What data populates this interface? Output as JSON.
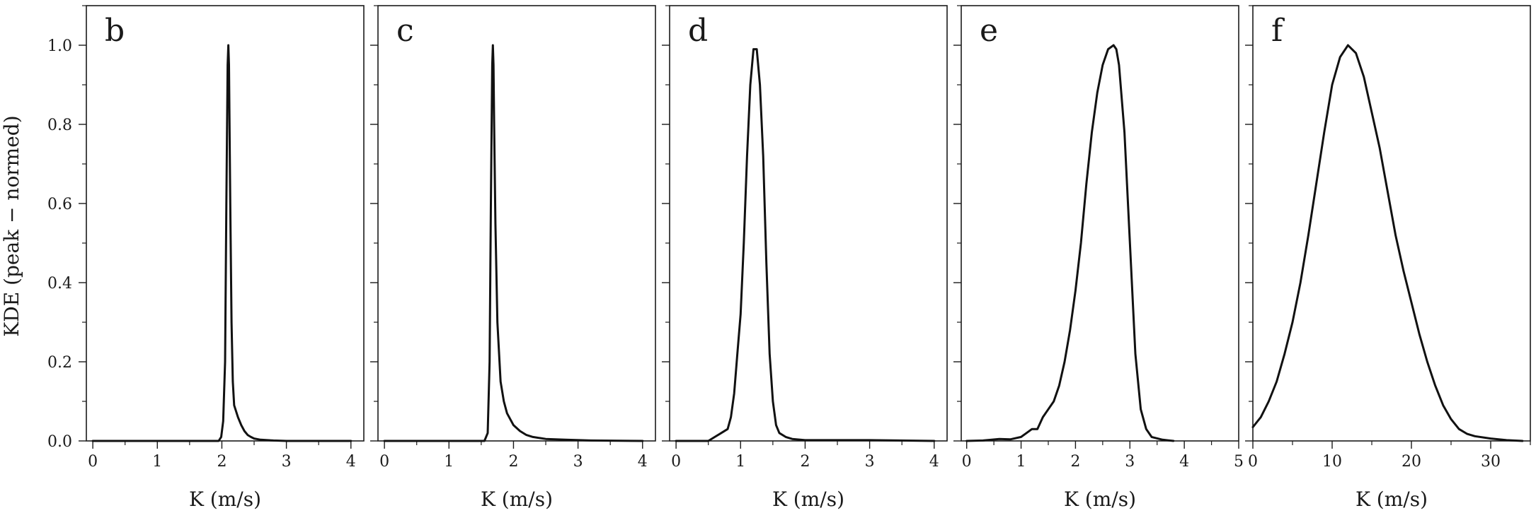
{
  "figure": {
    "ylabel": "KDE (peak − normed)",
    "line_color": "#111111"
  },
  "chart_data": [
    {
      "type": "line",
      "panel": "b",
      "xlabel": "K (m/s)",
      "xlim": [
        -0.1,
        4.2
      ],
      "ylim": [
        0,
        1.1
      ],
      "xticks": [
        0,
        1,
        2,
        3,
        4
      ],
      "yticks": [
        0.0,
        0.2,
        0.4,
        0.6,
        0.8,
        1.0
      ],
      "show_y_tick_labels": true,
      "x": [
        0,
        1.95,
        1.99,
        2.02,
        2.05,
        2.07,
        2.09,
        2.1,
        2.11,
        2.13,
        2.15,
        2.17,
        2.19,
        2.21,
        2.25,
        2.3,
        2.35,
        2.4,
        2.45,
        2.5,
        2.6,
        2.8,
        3.0,
        4.0
      ],
      "y": [
        0,
        0,
        0.01,
        0.05,
        0.2,
        0.6,
        0.95,
        1.0,
        0.95,
        0.6,
        0.3,
        0.15,
        0.09,
        0.08,
        0.06,
        0.04,
        0.025,
        0.015,
        0.01,
        0.006,
        0.003,
        0.001,
        0,
        0
      ]
    },
    {
      "type": "line",
      "panel": "c",
      "xlabel": "K (m/s)",
      "xlim": [
        -0.1,
        4.2
      ],
      "ylim": [
        0,
        1.1
      ],
      "xticks": [
        0,
        1,
        2,
        3,
        4
      ],
      "yticks": [
        0.0,
        0.2,
        0.4,
        0.6,
        0.8,
        1.0
      ],
      "show_y_tick_labels": false,
      "x": [
        0,
        1.55,
        1.6,
        1.63,
        1.65,
        1.67,
        1.68,
        1.69,
        1.7,
        1.72,
        1.75,
        1.8,
        1.85,
        1.9,
        2.0,
        2.1,
        2.2,
        2.3,
        2.5,
        2.8,
        3.2,
        4.0
      ],
      "y": [
        0,
        0,
        0.02,
        0.2,
        0.6,
        0.95,
        1.0,
        0.95,
        0.8,
        0.55,
        0.3,
        0.15,
        0.1,
        0.07,
        0.04,
        0.025,
        0.015,
        0.01,
        0.005,
        0.003,
        0.001,
        0
      ]
    },
    {
      "type": "line",
      "panel": "d",
      "xlabel": "K (m/s)",
      "xlim": [
        -0.1,
        4.2
      ],
      "ylim": [
        0,
        1.1
      ],
      "xticks": [
        0,
        1,
        2,
        3,
        4
      ],
      "yticks": [
        0.0,
        0.2,
        0.4,
        0.6,
        0.8,
        1.0
      ],
      "show_y_tick_labels": false,
      "x": [
        0,
        0.5,
        0.6,
        0.7,
        0.8,
        0.85,
        0.9,
        0.95,
        1.0,
        1.05,
        1.1,
        1.15,
        1.2,
        1.25,
        1.3,
        1.35,
        1.4,
        1.45,
        1.5,
        1.55,
        1.6,
        1.7,
        1.8,
        2.0,
        3.0,
        4.0
      ],
      "y": [
        0,
        0,
        0.01,
        0.02,
        0.03,
        0.06,
        0.12,
        0.22,
        0.32,
        0.5,
        0.72,
        0.9,
        0.99,
        0.99,
        0.9,
        0.72,
        0.45,
        0.22,
        0.1,
        0.04,
        0.02,
        0.01,
        0.005,
        0.002,
        0.002,
        0
      ]
    },
    {
      "type": "line",
      "panel": "e",
      "xlabel": "K (m/s)",
      "xlim": [
        -0.1,
        5.0
      ],
      "ylim": [
        0,
        1.1
      ],
      "xticks": [
        0,
        1,
        2,
        3,
        4,
        5
      ],
      "yticks": [
        0.0,
        0.2,
        0.4,
        0.6,
        0.8,
        1.0
      ],
      "show_y_tick_labels": false,
      "x": [
        0,
        0.3,
        0.6,
        0.8,
        1.0,
        1.1,
        1.2,
        1.3,
        1.4,
        1.5,
        1.6,
        1.7,
        1.8,
        1.9,
        2.0,
        2.1,
        2.2,
        2.3,
        2.4,
        2.5,
        2.6,
        2.7,
        2.75,
        2.8,
        2.9,
        3.0,
        3.1,
        3.2,
        3.3,
        3.4,
        3.6,
        3.8
      ],
      "y": [
        0,
        0.001,
        0.005,
        0.004,
        0.01,
        0.02,
        0.03,
        0.03,
        0.06,
        0.08,
        0.1,
        0.14,
        0.2,
        0.28,
        0.38,
        0.5,
        0.65,
        0.78,
        0.88,
        0.95,
        0.99,
        1.0,
        0.99,
        0.95,
        0.78,
        0.5,
        0.22,
        0.08,
        0.03,
        0.01,
        0.003,
        0
      ]
    },
    {
      "type": "line",
      "panel": "f",
      "xlabel": "K (m/s)",
      "xlim": [
        0,
        35
      ],
      "ylim": [
        0,
        1.1
      ],
      "xticks": [
        0,
        10,
        20,
        30
      ],
      "yticks": [
        0.0,
        0.2,
        0.4,
        0.6,
        0.8,
        1.0
      ],
      "show_y_tick_labels": false,
      "x": [
        0,
        1,
        2,
        3,
        4,
        5,
        6,
        7,
        8,
        9,
        10,
        11,
        12,
        13,
        14,
        15,
        16,
        17,
        18,
        19,
        20,
        21,
        22,
        23,
        24,
        25,
        26,
        27,
        28,
        30,
        32,
        34
      ],
      "y": [
        0.035,
        0.06,
        0.1,
        0.15,
        0.22,
        0.3,
        0.4,
        0.52,
        0.65,
        0.78,
        0.9,
        0.97,
        1.0,
        0.98,
        0.92,
        0.83,
        0.74,
        0.63,
        0.52,
        0.43,
        0.35,
        0.27,
        0.2,
        0.14,
        0.09,
        0.055,
        0.03,
        0.018,
        0.012,
        0.006,
        0.002,
        0
      ]
    }
  ]
}
